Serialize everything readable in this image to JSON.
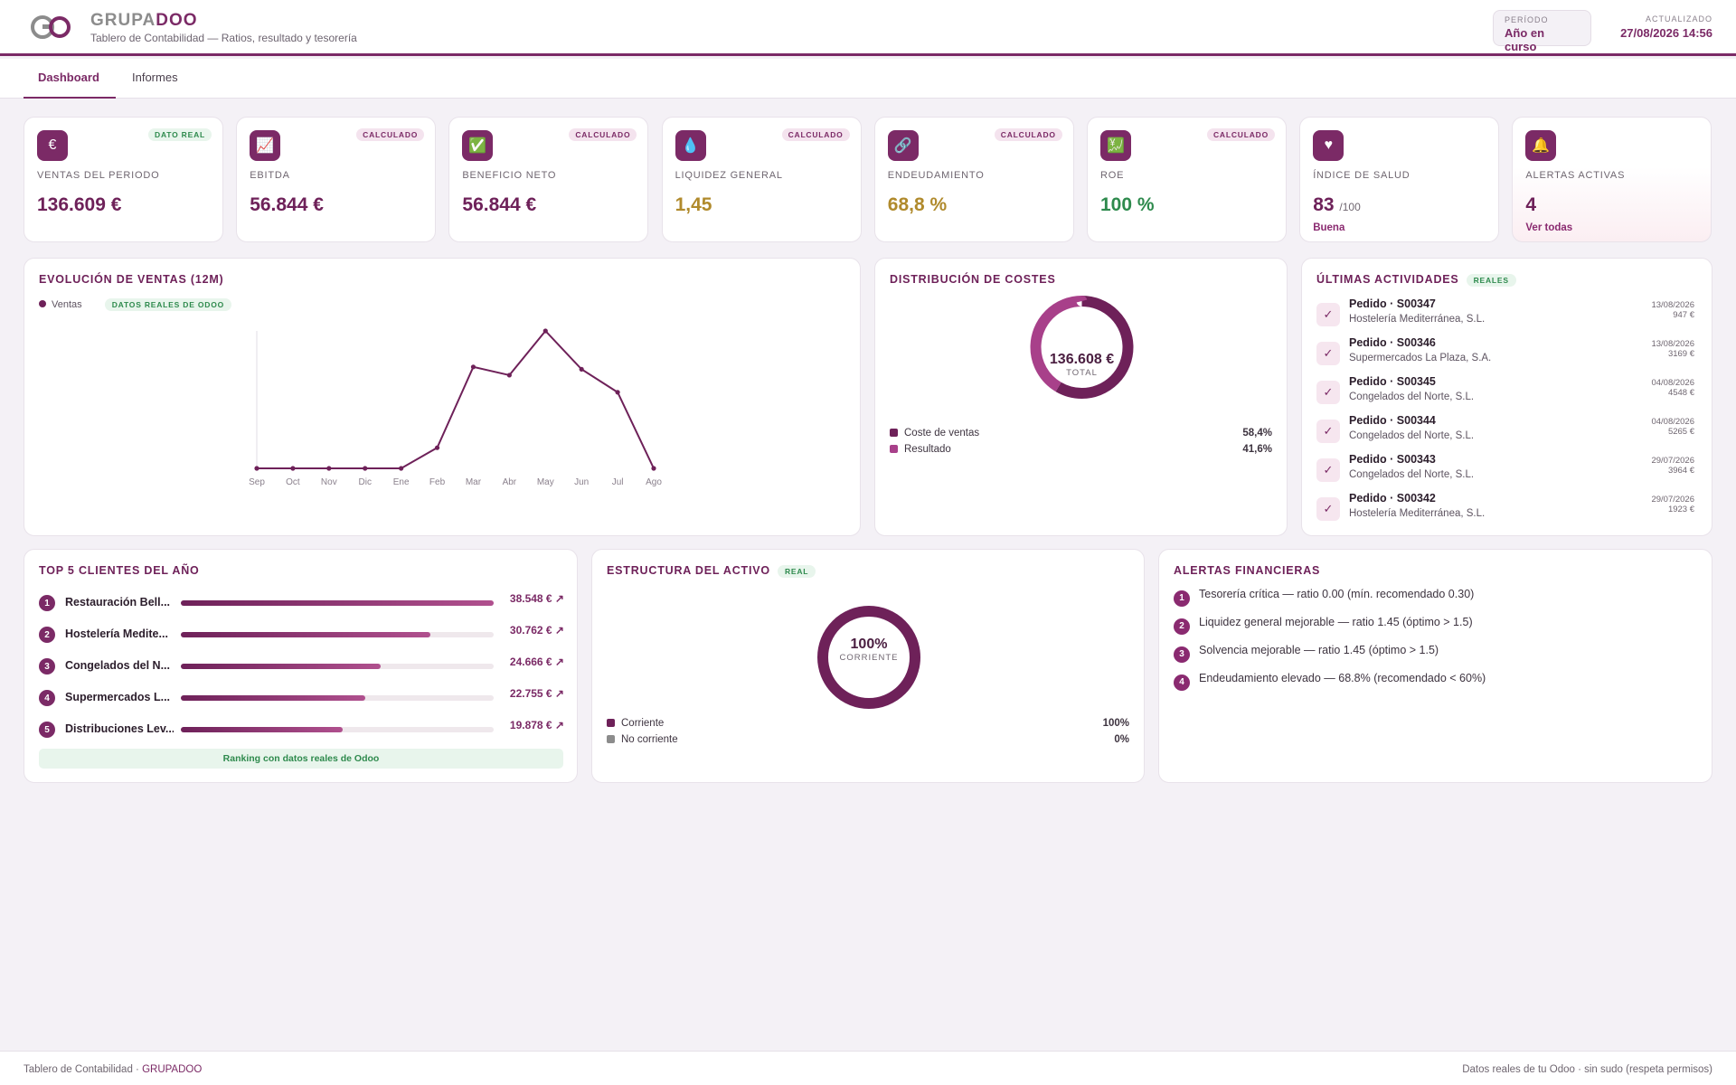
{
  "header": {
    "brand_a": "GRUPA",
    "brand_b": "DOO",
    "subtitle": "Tablero de Contabilidad — Ratios, resultado y tesorería",
    "period_label": "PERÍODO",
    "period_value": "Año en curso",
    "updated_label": "ACTUALIZADO",
    "updated_value": "27/08/2026 14:56"
  },
  "tabs": [
    "Dashboard",
    "Informes"
  ],
  "kpis": [
    {
      "icon": "euro-icon",
      "glyph": "€",
      "badge": "DATO REAL",
      "label": "VENTAS DEL PERIODO",
      "value": "136.609 €",
      "color": "#6e2159"
    },
    {
      "icon": "chart-up-icon",
      "glyph": "📈",
      "badge": "CALCULADO",
      "label": "EBITDA",
      "value": "56.844 €",
      "color": "#6e2159"
    },
    {
      "icon": "check-mark-icon",
      "glyph": "✅",
      "badge": "CALCULADO",
      "label": "BENEFICIO NETO",
      "value": "56.844 €",
      "color": "#6e2159"
    },
    {
      "icon": "droplet-icon",
      "glyph": "💧",
      "badge": "CALCULADO",
      "label": "LIQUIDEZ GENERAL",
      "value": "1,45",
      "color": "#b08a2c"
    },
    {
      "icon": "link-icon",
      "glyph": "🔗",
      "badge": "CALCULADO",
      "label": "ENDEUDAMIENTO",
      "value": "68,8 %",
      "color": "#b08a2c"
    },
    {
      "icon": "chart-check-icon",
      "glyph": "💹",
      "badge": "CALCULADO",
      "label": "ROE",
      "value": "100 %",
      "color": "#2e8a4d"
    },
    {
      "icon": "heart-icon",
      "glyph": "♥",
      "badge": "",
      "label": "ÍNDICE DE SALUD",
      "value": "83",
      "suffix": "/100",
      "small": "Buena",
      "color": "#6e2159"
    },
    {
      "icon": "bell-icon",
      "glyph": "🔔",
      "badge": "",
      "label": "ALERTAS ACTIVAS",
      "value": "4",
      "small": "Ver todas",
      "color": "#6e2159"
    }
  ],
  "sales": {
    "title": "EVOLUCIÓN DE VENTAS (12M)",
    "legend": "Ventas",
    "pill": "DATOS REALES DE ODOO"
  },
  "chart_data": {
    "type": "line",
    "categories": [
      "Sep",
      "Oct",
      "Nov",
      "Dic",
      "Ene",
      "Feb",
      "Mar",
      "Abr",
      "May",
      "Jun",
      "Jul",
      "Ago"
    ],
    "series": [
      {
        "name": "Ventas",
        "values": [
          0,
          0,
          0,
          0,
          0,
          3500,
          17200,
          15800,
          23300,
          16800,
          12900,
          0
        ]
      }
    ],
    "ylim": [
      0,
      23300
    ],
    "xlabel": "",
    "ylabel": ""
  },
  "costs": {
    "title": "DISTRIBUCIÓN DE COSTES",
    "total_value": "136.608 €",
    "total_label": "TOTAL",
    "items": [
      {
        "label": "Coste de ventas",
        "pct": "58,4%",
        "value": 58.4,
        "color": "#6e2159"
      },
      {
        "label": "Resultado",
        "pct": "41,6%",
        "value": 41.6,
        "color": "#a8408a"
      }
    ]
  },
  "activities": {
    "title": "ÚLTIMAS ACTIVIDADES",
    "pill": "REALES",
    "items": [
      {
        "title": "Pedido · S00347",
        "customer": "Hostelería Mediterránea, S.L.",
        "date": "13/08/2026",
        "amount": "947 €"
      },
      {
        "title": "Pedido · S00346",
        "customer": "Supermercados La Plaza, S.A.",
        "date": "13/08/2026",
        "amount": "3169 €"
      },
      {
        "title": "Pedido · S00345",
        "customer": "Congelados del Norte, S.L.",
        "date": "04/08/2026",
        "amount": "4548 €"
      },
      {
        "title": "Pedido · S00344",
        "customer": "Congelados del Norte, S.L.",
        "date": "04/08/2026",
        "amount": "5265 €"
      },
      {
        "title": "Pedido · S00343",
        "customer": "Congelados del Norte, S.L.",
        "date": "29/07/2026",
        "amount": "3964 €"
      },
      {
        "title": "Pedido · S00342",
        "customer": "Hostelería Mediterránea, S.L.",
        "date": "29/07/2026",
        "amount": "1923 €"
      }
    ]
  },
  "clients": {
    "title": "TOP 5 CLIENTES DEL AÑO",
    "footer": "Ranking con datos reales de Odoo",
    "items": [
      {
        "rank": "1",
        "name": "Restauración Bell...",
        "value": "38.548 € ↗",
        "fraction": 1.0
      },
      {
        "rank": "2",
        "name": "Hostelería Medite...",
        "value": "30.762 € ↗",
        "fraction": 0.798
      },
      {
        "rank": "3",
        "name": "Congelados del N...",
        "value": "24.666 € ↗",
        "fraction": 0.64
      },
      {
        "rank": "4",
        "name": "Supermercados L...",
        "value": "22.755 € ↗",
        "fraction": 0.59
      },
      {
        "rank": "5",
        "name": "Distribuciones Lev...",
        "value": "19.878 € ↗",
        "fraction": 0.516
      }
    ]
  },
  "assets": {
    "title": "ESTRUCTURA DEL ACTIVO",
    "pill": "REAL",
    "center_value": "100%",
    "center_label": "CORRIENTE",
    "items": [
      {
        "label": "Corriente",
        "pct": "100%",
        "value": 100,
        "color": "#6e2159"
      },
      {
        "label": "No corriente",
        "pct": "0%",
        "value": 0,
        "color": "#8c8c8c"
      }
    ]
  },
  "alerts": {
    "title": "ALERTAS FINANCIERAS",
    "items": [
      {
        "n": "1",
        "text": "Tesorería crítica — ratio 0.00 (mín. recomendado 0.30)"
      },
      {
        "n": "2",
        "text": "Liquidez general mejorable — ratio 1.45 (óptimo > 1.5)"
      },
      {
        "n": "3",
        "text": "Solvencia mejorable — ratio 1.45 (óptimo > 1.5)"
      },
      {
        "n": "4",
        "text": "Endeudamiento elevado — 68.8% (recomendado < 60%)"
      }
    ]
  },
  "footer": {
    "left": "Tablero de Contabilidad · ",
    "left_brand": "GRUPADOO",
    "right": "Datos reales de tu Odoo · sin sudo (respeta permisos)"
  }
}
